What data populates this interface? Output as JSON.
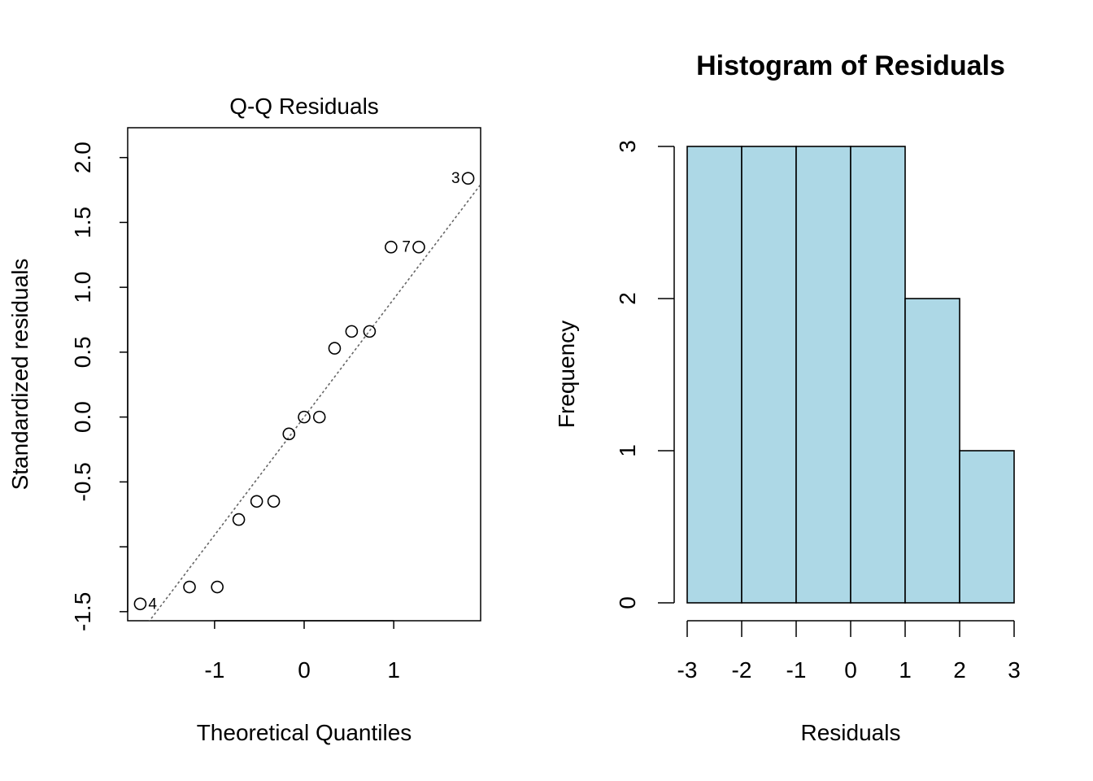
{
  "chart_data": [
    {
      "type": "scatter",
      "title": "Q-Q Residuals",
      "xlabel": "Theoretical Quantiles",
      "ylabel": "Standardized residuals",
      "xlim": [
        -1.97,
        1.97
      ],
      "ylim": [
        -1.57,
        2.23
      ],
      "x_ticks": [
        -1,
        0,
        1
      ],
      "x_tick_labels": [
        "-1",
        "0",
        "1"
      ],
      "y_ticks": [
        -1.5,
        -1.0,
        -0.5,
        0.0,
        0.5,
        1.0,
        1.5,
        2.0
      ],
      "y_tick_labels": [
        "-1.5",
        "",
        "-0.5",
        "0.0",
        "0.5",
        "1.0",
        "1.5",
        "2.0"
      ],
      "reference_line": {
        "slope": 0.91,
        "intercept": 0.0
      },
      "points": [
        {
          "x": -1.83,
          "y": -1.44,
          "label": "4"
        },
        {
          "x": -1.28,
          "y": -1.31,
          "label": ""
        },
        {
          "x": -0.97,
          "y": -1.31,
          "label": ""
        },
        {
          "x": -0.73,
          "y": -0.79,
          "label": ""
        },
        {
          "x": -0.53,
          "y": -0.65,
          "label": ""
        },
        {
          "x": -0.34,
          "y": -0.65,
          "label": ""
        },
        {
          "x": -0.17,
          "y": -0.13,
          "label": ""
        },
        {
          "x": 0.0,
          "y": 0.0,
          "label": ""
        },
        {
          "x": 0.17,
          "y": 0.0,
          "label": ""
        },
        {
          "x": 0.34,
          "y": 0.53,
          "label": ""
        },
        {
          "x": 0.53,
          "y": 0.66,
          "label": ""
        },
        {
          "x": 0.73,
          "y": 0.66,
          "label": ""
        },
        {
          "x": 0.97,
          "y": 1.31,
          "label": ""
        },
        {
          "x": 1.28,
          "y": 1.31,
          "label": "7"
        },
        {
          "x": 1.83,
          "y": 1.84,
          "label": "3"
        }
      ]
    },
    {
      "type": "bar",
      "title": "Histogram of Residuals",
      "xlabel": "Residuals",
      "ylabel": "Frequency",
      "bins": [
        {
          "from": -3,
          "to": -2,
          "count": 3
        },
        {
          "from": -2,
          "to": -1,
          "count": 3
        },
        {
          "from": -1,
          "to": 0,
          "count": 3
        },
        {
          "from": 0,
          "to": 1,
          "count": 3
        },
        {
          "from": 1,
          "to": 2,
          "count": 2
        },
        {
          "from": 2,
          "to": 3,
          "count": 1
        }
      ],
      "x_ticks": [
        -3,
        -2,
        -1,
        0,
        1,
        2,
        3
      ],
      "x_tick_labels": [
        "-3",
        "-2",
        "-1",
        "0",
        "1",
        "2",
        "3"
      ],
      "y_ticks": [
        0,
        1,
        2,
        3
      ],
      "y_tick_labels": [
        "0",
        "1",
        "2",
        "3"
      ],
      "fill_color": "#add8e6"
    }
  ]
}
